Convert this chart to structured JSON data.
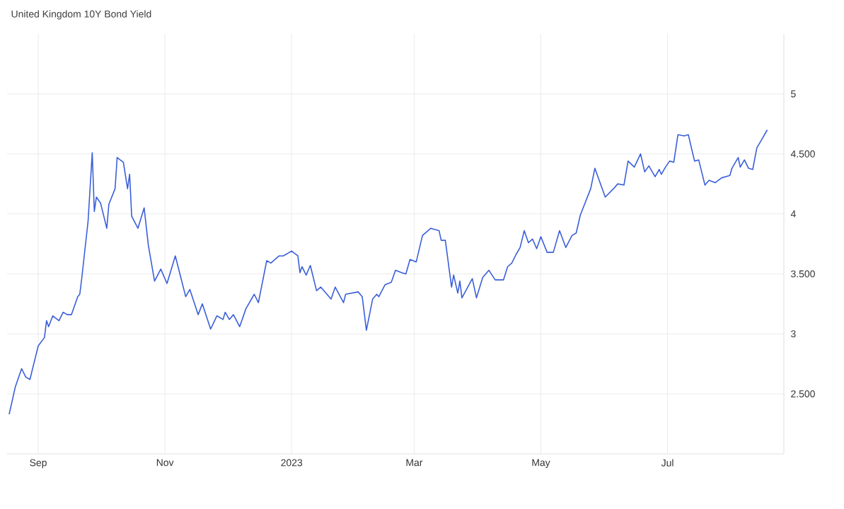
{
  "chart_data": {
    "type": "line",
    "title": "United Kingdom 10Y Bond Yield",
    "x": [
      "2022-08-18",
      "2022-08-21",
      "2022-08-24",
      "2022-08-26",
      "2022-08-28",
      "2022-09-01",
      "2022-09-04",
      "2022-09-05",
      "2022-09-06",
      "2022-09-08",
      "2022-09-11",
      "2022-09-13",
      "2022-09-15",
      "2022-09-17",
      "2022-09-20",
      "2022-09-21",
      "2022-09-22",
      "2022-09-25",
      "2022-09-27",
      "2022-09-28",
      "2022-09-29",
      "2022-10-01",
      "2022-10-04",
      "2022-10-05",
      "2022-10-08",
      "2022-10-09",
      "2022-10-12",
      "2022-10-14",
      "2022-10-15",
      "2022-10-16",
      "2022-10-19",
      "2022-10-22",
      "2022-10-24",
      "2022-10-27",
      "2022-10-30",
      "2022-11-02",
      "2022-11-06",
      "2022-11-11",
      "2022-11-13",
      "2022-11-17",
      "2022-11-19",
      "2022-11-23",
      "2022-11-26",
      "2022-11-29",
      "2022-11-30",
      "2022-12-02",
      "2022-12-04",
      "2022-12-07",
      "2022-12-10",
      "2022-12-14",
      "2022-12-16",
      "2022-12-20",
      "2022-12-22",
      "2022-12-26",
      "2022-12-28",
      "2023-01-01",
      "2023-01-04",
      "2023-01-05",
      "2023-01-06",
      "2023-01-08",
      "2023-01-10",
      "2023-01-13",
      "2023-01-15",
      "2023-01-20",
      "2023-01-22",
      "2023-01-26",
      "2023-01-27",
      "2023-02-02",
      "2023-02-04",
      "2023-02-06",
      "2023-02-09",
      "2023-02-11",
      "2023-02-12",
      "2023-02-15",
      "2023-02-18",
      "2023-02-20",
      "2023-02-23",
      "2023-02-25",
      "2023-02-27",
      "2023-03-02",
      "2023-03-05",
      "2023-03-09",
      "2023-03-13",
      "2023-03-14",
      "2023-03-16",
      "2023-03-19",
      "2023-03-20",
      "2023-03-22",
      "2023-03-23",
      "2023-03-24",
      "2023-03-29",
      "2023-03-31",
      "2023-04-03",
      "2023-04-06",
      "2023-04-09",
      "2023-04-13",
      "2023-04-15",
      "2023-04-17",
      "2023-04-19",
      "2023-04-21",
      "2023-04-23",
      "2023-04-25",
      "2023-04-27",
      "2023-04-29",
      "2023-05-01",
      "2023-05-04",
      "2023-05-07",
      "2023-05-10",
      "2023-05-13",
      "2023-05-16",
      "2023-05-18",
      "2023-05-20",
      "2023-05-25",
      "2023-05-27",
      "2023-06-01",
      "2023-06-05",
      "2023-06-07",
      "2023-06-10",
      "2023-06-12",
      "2023-06-15",
      "2023-06-18",
      "2023-06-20",
      "2023-06-22",
      "2023-06-25",
      "2023-06-27",
      "2023-06-28",
      "2023-06-30",
      "2023-07-02",
      "2023-07-04",
      "2023-07-06",
      "2023-07-09",
      "2023-07-11",
      "2023-07-14",
      "2023-07-16",
      "2023-07-19",
      "2023-07-21",
      "2023-07-24",
      "2023-07-27",
      "2023-07-31",
      "2023-08-01",
      "2023-08-04",
      "2023-08-05",
      "2023-08-07",
      "2023-08-09",
      "2023-08-11",
      "2023-08-13",
      "2023-08-15",
      "2023-08-18"
    ],
    "values": [
      2.33,
      2.56,
      2.71,
      2.64,
      2.62,
      2.9,
      2.97,
      3.11,
      3.06,
      3.15,
      3.11,
      3.18,
      3.16,
      3.16,
      3.31,
      3.33,
      3.47,
      3.94,
      4.51,
      4.02,
      4.14,
      4.09,
      3.88,
      4.08,
      4.21,
      4.47,
      4.43,
      4.21,
      4.33,
      3.98,
      3.88,
      4.05,
      3.74,
      3.44,
      3.54,
      3.42,
      3.65,
      3.31,
      3.37,
      3.16,
      3.25,
      3.04,
      3.15,
      3.12,
      3.18,
      3.12,
      3.16,
      3.06,
      3.21,
      3.33,
      3.26,
      3.61,
      3.59,
      3.65,
      3.65,
      3.69,
      3.65,
      3.51,
      3.56,
      3.49,
      3.57,
      3.36,
      3.39,
      3.29,
      3.39,
      3.26,
      3.33,
      3.35,
      3.31,
      3.03,
      3.29,
      3.33,
      3.31,
      3.41,
      3.43,
      3.53,
      3.51,
      3.5,
      3.62,
      3.6,
      3.82,
      3.88,
      3.86,
      3.78,
      3.78,
      3.39,
      3.49,
      3.34,
      3.44,
      3.3,
      3.46,
      3.3,
      3.47,
      3.53,
      3.45,
      3.45,
      3.56,
      3.59,
      3.66,
      3.72,
      3.86,
      3.76,
      3.79,
      3.71,
      3.81,
      3.68,
      3.68,
      3.86,
      3.72,
      3.82,
      3.84,
      3.99,
      4.21,
      4.38,
      4.14,
      4.21,
      4.25,
      4.24,
      4.44,
      4.39,
      4.5,
      4.35,
      4.4,
      4.31,
      4.37,
      4.33,
      4.39,
      4.44,
      4.43,
      4.66,
      4.65,
      4.66,
      4.44,
      4.45,
      4.24,
      4.28,
      4.26,
      4.3,
      4.32,
      4.38,
      4.47,
      4.39,
      4.45,
      4.38,
      4.37,
      4.55,
      4.61,
      4.7
    ],
    "color": "#3a5fd9",
    "xlim": [
      "2022-08-17",
      "2023-08-26"
    ],
    "ylim": [
      2.0,
      5.5
    ],
    "xticks": [
      {
        "value": "2022-09-01",
        "label": "Sep"
      },
      {
        "value": "2022-11-01",
        "label": "Nov"
      },
      {
        "value": "2023-01-01",
        "label": "2023"
      },
      {
        "value": "2023-03-01",
        "label": "Mar"
      },
      {
        "value": "2023-05-01",
        "label": "May"
      },
      {
        "value": "2023-07-01",
        "label": "Jul"
      }
    ],
    "yticks": [
      {
        "value": 2.5,
        "label": "2.500"
      },
      3,
      {
        "value": 3.5,
        "label": "3.500"
      },
      4,
      {
        "value": 4.5,
        "label": "4.500"
      },
      5
    ],
    "grid": true
  }
}
